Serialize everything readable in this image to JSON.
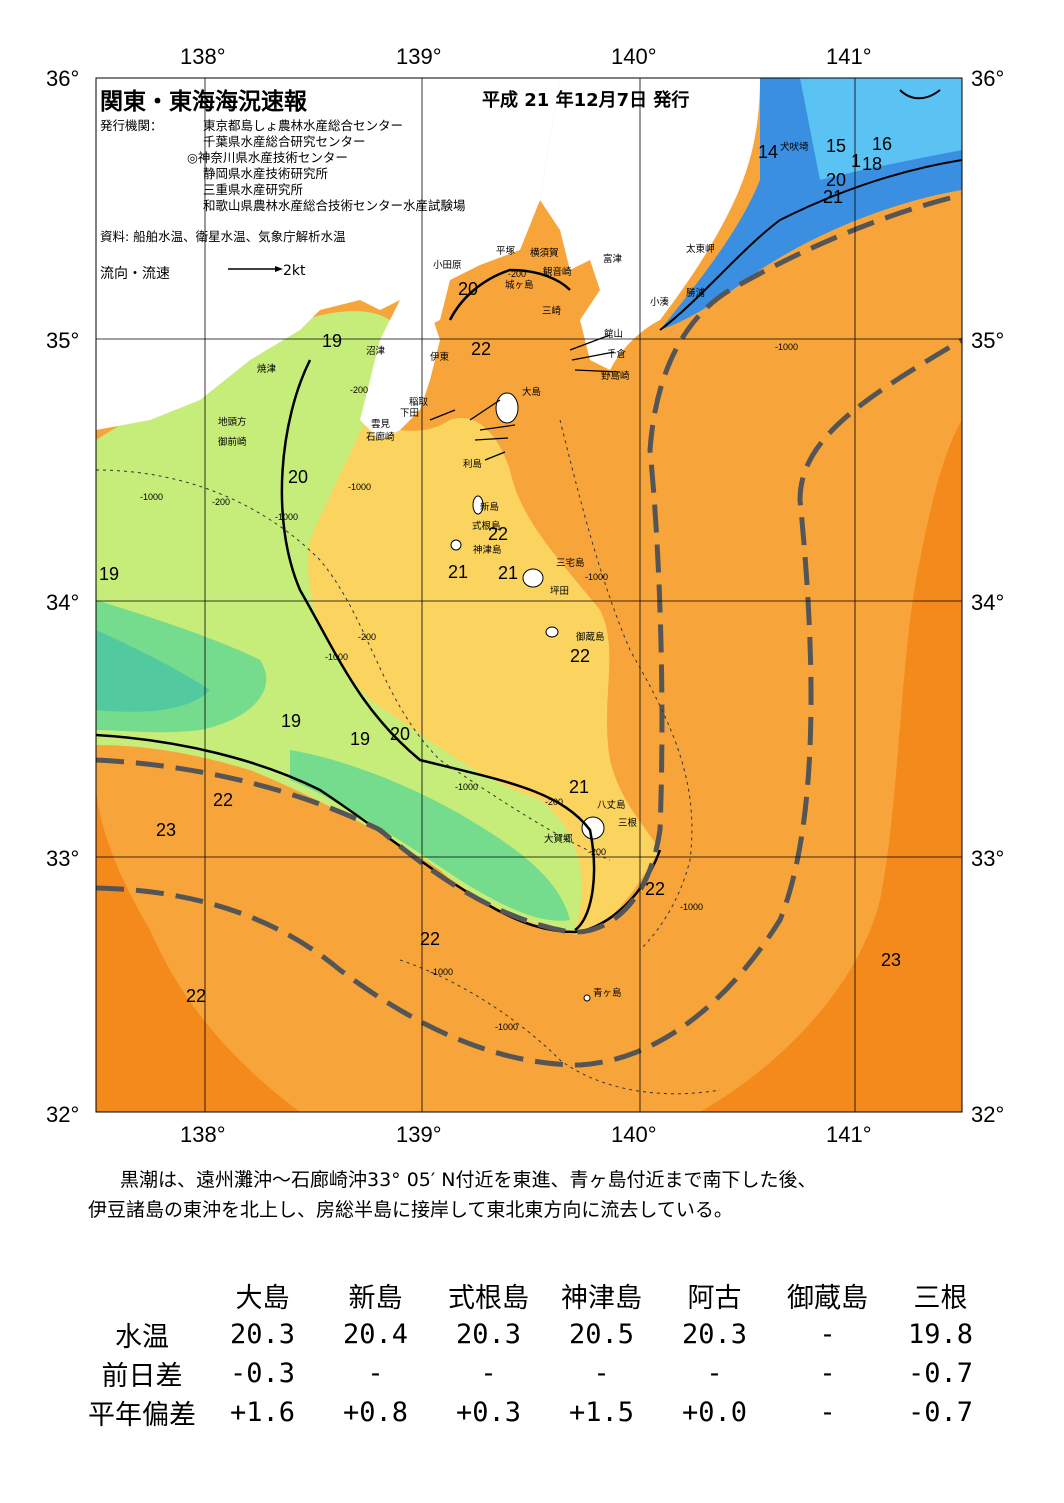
{
  "map": {
    "title": "関東・東海海況速報",
    "issue_date": "平成 21 年12月7日 発行",
    "issuer_label": "発行機関：",
    "issuers": [
      "東京都島しょ農林水産総合センター",
      "千葉県水産総合研究センター",
      "◎神奈川県水産技術センター",
      "静岡県水産技術研究所",
      "三重県水産研究所",
      "和歌山県農林水産総合技術センター水産試験場"
    ],
    "source": "資料: 船舶水温、衛星水温、気象庁解析水温",
    "flow_legend": "流向・流速",
    "flow_unit": "2kt",
    "lon_labels": [
      "138°",
      "139°",
      "140°",
      "141°"
    ],
    "lat_labels": [
      "36°",
      "35°",
      "34°",
      "33°",
      "32°"
    ],
    "isotherm_labels": [
      "14",
      "15",
      "16",
      "1",
      "18",
      "20",
      "21",
      "19",
      "20",
      "22",
      "20",
      "19",
      "21",
      "22",
      "21",
      "22",
      "19",
      "20",
      "19",
      "22",
      "23",
      "21",
      "22",
      "22",
      "22",
      "23"
    ],
    "depth_labels": [
      "-200",
      "-200",
      "-1000",
      "-200",
      "-1000",
      "-200",
      "-1000",
      "-200",
      "-1000",
      "-1000",
      "-1000",
      "-200",
      "-1000",
      "-1000",
      "-1000",
      "-1000"
    ],
    "place_names": [
      "犬吠埼",
      "太東岬",
      "勝浦",
      "小湊",
      "館山",
      "千倉",
      "野島崎",
      "富津",
      "観音崎",
      "横須賀",
      "平塚",
      "小田原",
      "三崎",
      "城ヶ島",
      "伊東",
      "沼津",
      "焼津",
      "地頭方",
      "御前崎",
      "稲取",
      "下田",
      "雲見",
      "石廊崎",
      "大島",
      "利島",
      "新島",
      "式根島",
      "神津島",
      "三宅島",
      "坪田",
      "御蔵島",
      "八丈島",
      "三根",
      "大賀郷",
      "青ヶ島"
    ],
    "colors": {
      "kuroshio_axis": "#555555",
      "warm_23": "#f4891c",
      "warm_22": "#f7a53b",
      "mid_21": "#fbd45f",
      "cool_20": "#c6ec7a",
      "cool_19": "#74dc8c",
      "land": "#ffffff"
    }
  },
  "description": [
    "黒潮は、遠州灘沖～石廊崎沖33° 05′ N付近を東進、青ヶ島付近まで南下した後、",
    "伊豆諸島の東沖を北上し、房総半島に接岸して東北東方向に流去している。"
  ],
  "temperature_table": {
    "stations": [
      "大島",
      "新島",
      "式根島",
      "神津島",
      "阿古",
      "御蔵島",
      "三根"
    ],
    "rows": [
      {
        "label": "水温",
        "values": [
          "20.3",
          "20.4",
          "20.3",
          "20.5",
          "20.3",
          "-",
          "19.8"
        ]
      },
      {
        "label": "前日差",
        "values": [
          "-0.3",
          "-",
          "-",
          "-",
          "-",
          "-",
          "-0.7"
        ]
      },
      {
        "label": "平年偏差",
        "values": [
          "+1.6",
          "+0.8",
          "+0.3",
          "+1.5",
          "+0.0",
          "-",
          "-0.7"
        ]
      }
    ]
  }
}
